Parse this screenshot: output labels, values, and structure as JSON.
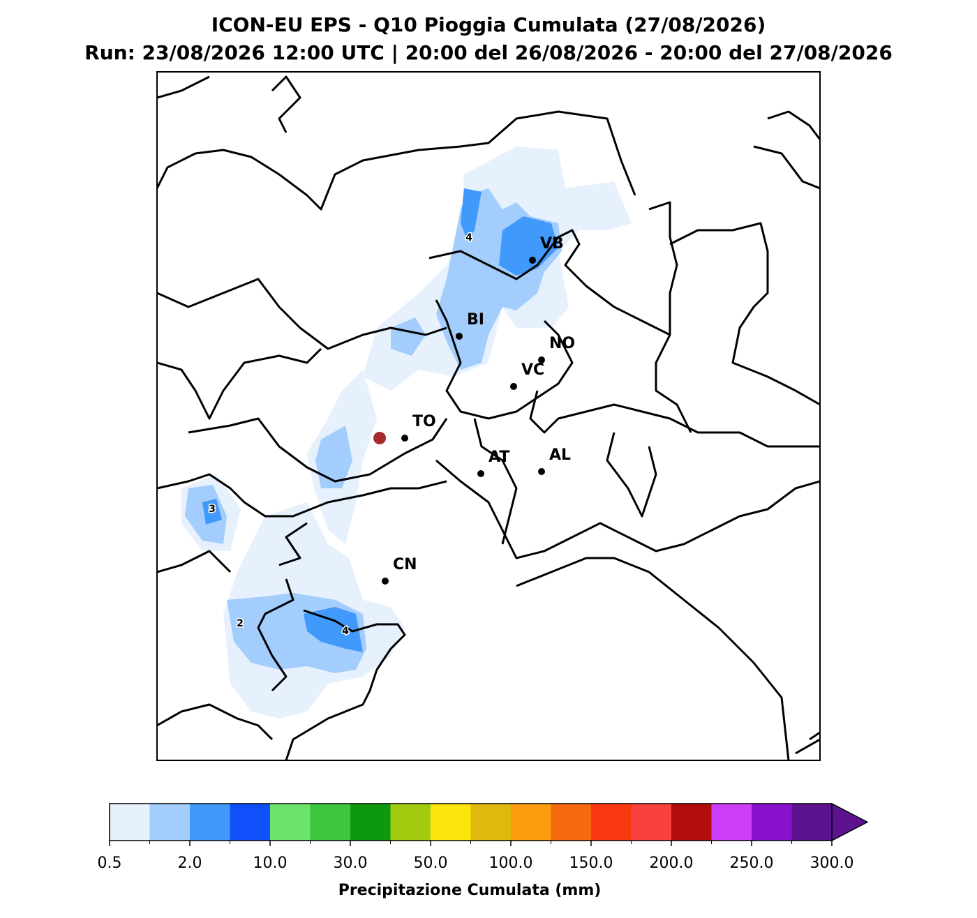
{
  "title": {
    "line1": "ICON-EU EPS - Q10 Pioggia Cumulata (27/08/2026)",
    "line2": "Run: 23/08/2026 12:00 UTC | 20:00 del 26/08/2026 - 20:00 del 27/08/2026"
  },
  "cities": [
    "VB",
    "BI",
    "NO",
    "VC",
    "TO",
    "AT",
    "AL",
    "CN"
  ],
  "contour_labels": [
    "4",
    "3",
    "2",
    "4"
  ],
  "colorbar": {
    "label": "Precipitazione Cumulata (mm)",
    "colors": [
      "#e6f1fd",
      "#a3cdfc",
      "#4199fb",
      "#0f50fb",
      "#6ce36b",
      "#3dc73e",
      "#0d990e",
      "#a2cb0f",
      "#fce50d",
      "#e1b80d",
      "#fb9b0d",
      "#f9690f",
      "#f93a10",
      "#f9423f",
      "#b10d0d",
      "#cc3ef8",
      "#8b11cf",
      "#5d1290"
    ],
    "ticks": [
      {
        "value": 0.5,
        "label": "0.5"
      },
      {
        "value": 2,
        "label": "2.0"
      },
      {
        "value": 10,
        "label": "10.0"
      },
      {
        "value": 30,
        "label": "30.0"
      },
      {
        "value": 50,
        "label": "50.0"
      },
      {
        "value": 100,
        "label": "100.0"
      },
      {
        "value": 150,
        "label": "150.0"
      },
      {
        "value": 200,
        "label": "200.0"
      },
      {
        "value": 250,
        "label": "250.0"
      },
      {
        "value": 300,
        "label": "300.0"
      }
    ]
  }
}
